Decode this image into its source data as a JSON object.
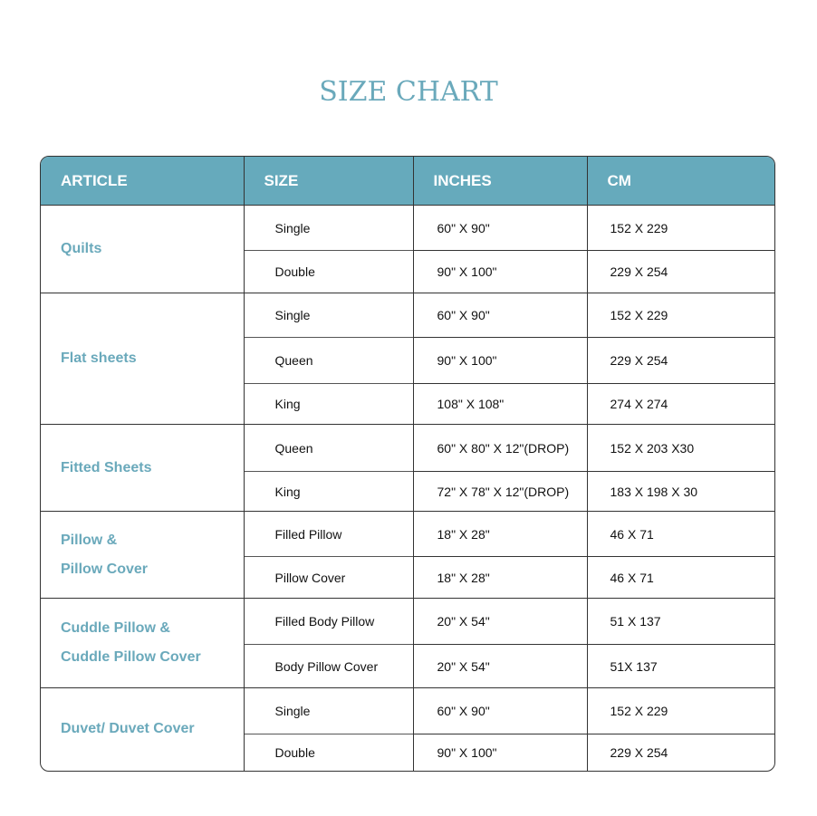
{
  "title": "SIZE CHART",
  "headers": [
    "ARTICLE",
    "SIZE",
    "INCHES",
    "CM"
  ],
  "colors": {
    "accent": "#66aabc",
    "article_text": "#6aa9bb"
  },
  "groups": [
    {
      "article": [
        "Quilts"
      ],
      "rows": [
        [
          "Single",
          "60\" X 90\"",
          "152 X 229"
        ],
        [
          "Double",
          "90\" X 100\"",
          "229 X 254"
        ]
      ]
    },
    {
      "article": [
        "Flat sheets"
      ],
      "rows": [
        [
          "Single",
          "60\" X 90\"",
          "152 X 229"
        ],
        [
          "Queen",
          "90\" X 100\"",
          "229 X 254"
        ],
        [
          "King",
          "108\" X 108\"",
          "274 X 274"
        ]
      ]
    },
    {
      "article": [
        "Fitted Sheets"
      ],
      "rows": [
        [
          "Queen",
          "60\" X 80\" X 12\"(DROP)",
          "152 X 203 X30"
        ],
        [
          "King",
          "72\" X 78\" X 12\"(DROP)",
          "183 X 198 X 30"
        ]
      ]
    },
    {
      "article": [
        "Pillow &",
        "Pillow Cover"
      ],
      "rows": [
        [
          "Filled Pillow",
          "18\" X 28\"",
          "46 X 71"
        ],
        [
          "Pillow Cover",
          "18\" X 28\"",
          "46 X 71"
        ]
      ]
    },
    {
      "article": [
        "Cuddle Pillow &",
        "Cuddle Pillow Cover"
      ],
      "rows": [
        [
          "Filled Body Pillow",
          "20\" X 54\"",
          "51 X 137"
        ],
        [
          "Body Pillow Cover",
          "20\" X 54\"",
          "51X 137"
        ]
      ]
    },
    {
      "article": [
        "Duvet/ Duvet Cover"
      ],
      "rows": [
        [
          "Single",
          "60\" X 90\"",
          "152 X 229"
        ],
        [
          "Double",
          "90\" X 100\"",
          "229 X 254"
        ]
      ]
    }
  ]
}
